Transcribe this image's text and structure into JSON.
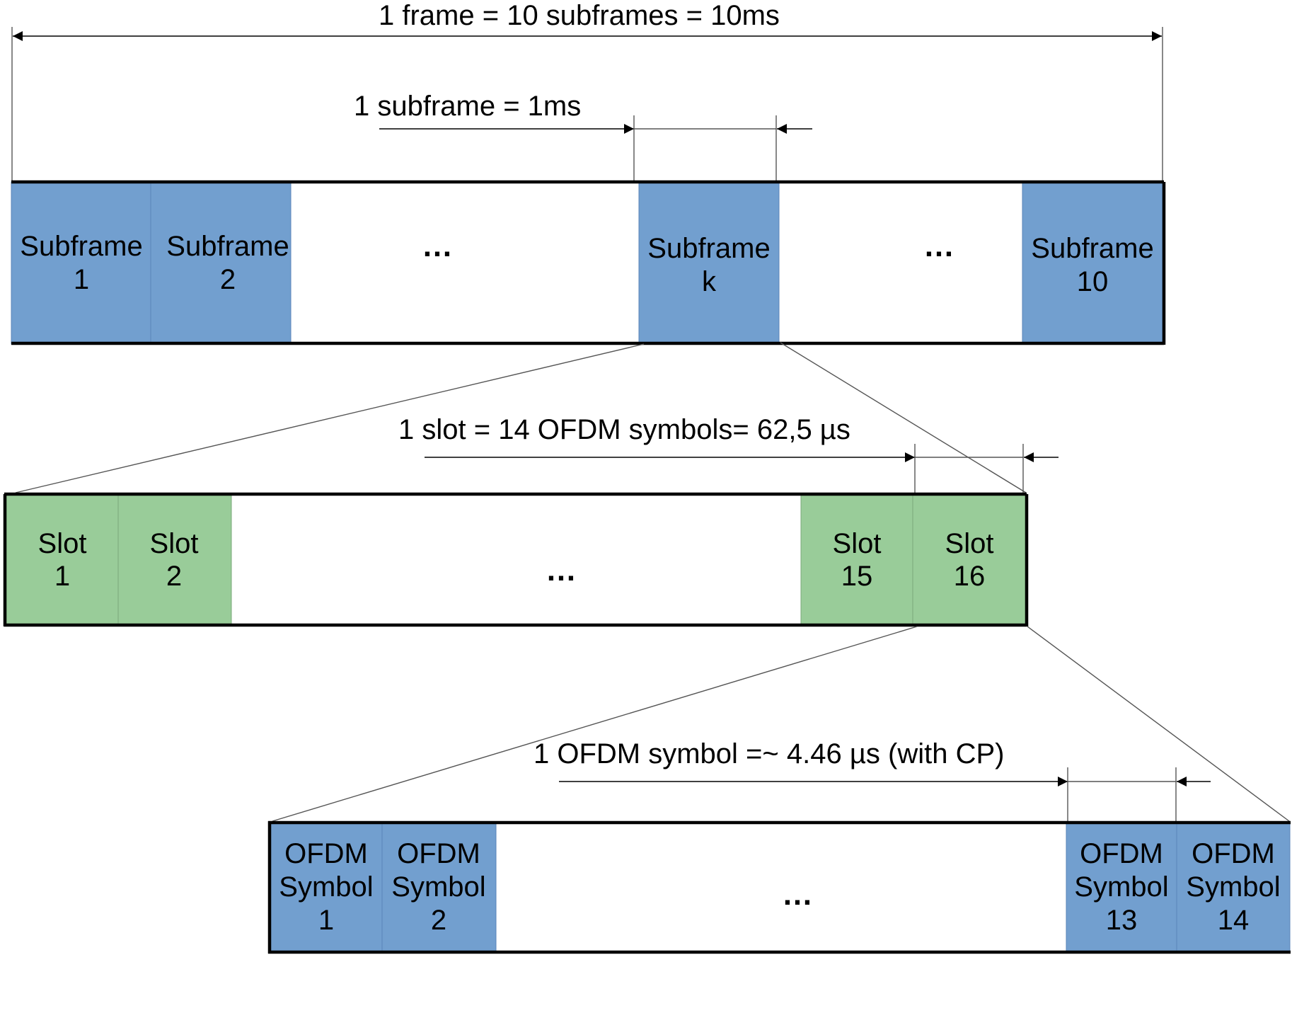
{
  "colors": {
    "subframe": "#729fcf",
    "slot": "#99cc99",
    "symbol": "#729fcf",
    "outline": "#000000"
  },
  "labels": {
    "frame_dim": "1 frame = 10 subframes = 10ms",
    "subframe_dim": "1 subframe = 1ms",
    "slot_dim": "1 slot = 14 OFDM symbols= 62,5 µs",
    "symbol_dim": "1 OFDM symbol =~ 4.46 µs (with CP)"
  },
  "frame_row": {
    "cells": [
      {
        "line1": "Subframe",
        "line2": "1"
      },
      {
        "line1": "Subframe",
        "line2": "2"
      },
      {
        "line1": "Subframe",
        "line2": "k"
      },
      {
        "line1": "Subframe",
        "line2": "10"
      }
    ],
    "ellipses": [
      "…",
      "…"
    ]
  },
  "slot_row": {
    "cells": [
      {
        "line1": "Slot",
        "line2": "1"
      },
      {
        "line1": "Slot",
        "line2": "2"
      },
      {
        "line1": "Slot",
        "line2": "15"
      },
      {
        "line1": "Slot",
        "line2": "16"
      }
    ],
    "ellipses": [
      "…"
    ]
  },
  "symbol_row": {
    "cells": [
      {
        "line1": "OFDM",
        "line2": "Symbol",
        "line3": "1"
      },
      {
        "line1": "OFDM",
        "line2": "Symbol",
        "line3": "2"
      },
      {
        "line1": "OFDM",
        "line2": "Symbol",
        "line3": "13"
      },
      {
        "line1": "OFDM",
        "line2": "Symbol",
        "line3": "14"
      }
    ],
    "ellipses": [
      "…"
    ]
  }
}
